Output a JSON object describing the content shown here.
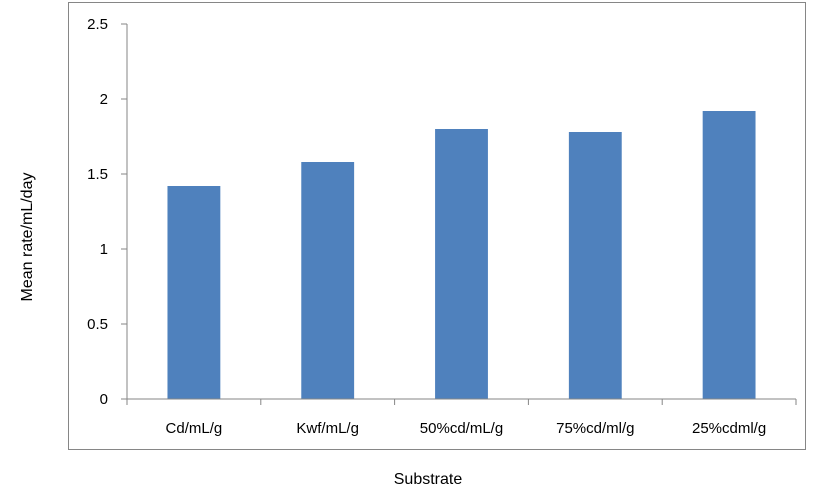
{
  "chart_data": {
    "type": "bar",
    "categories": [
      "Cd/mL/g",
      "Kwf/mL/g",
      "50%cd/mL/g",
      "75%cd/ml/g",
      "25%cdml/g"
    ],
    "series": [
      {
        "values": [
          1.42,
          1.58,
          1.8,
          1.78,
          1.92
        ]
      }
    ],
    "title": "",
    "xlabel": "Substrate",
    "ylabel": "Mean rate/mL/day",
    "ylim": [
      0,
      2.5
    ],
    "yticks": [
      "0",
      "0.5",
      "1",
      "1.5",
      "2",
      "2.5"
    ],
    "grid": false,
    "legend": "none",
    "colors": {
      "bar": "#4f81bd",
      "axis": "#868686",
      "frame": "#868686"
    }
  }
}
